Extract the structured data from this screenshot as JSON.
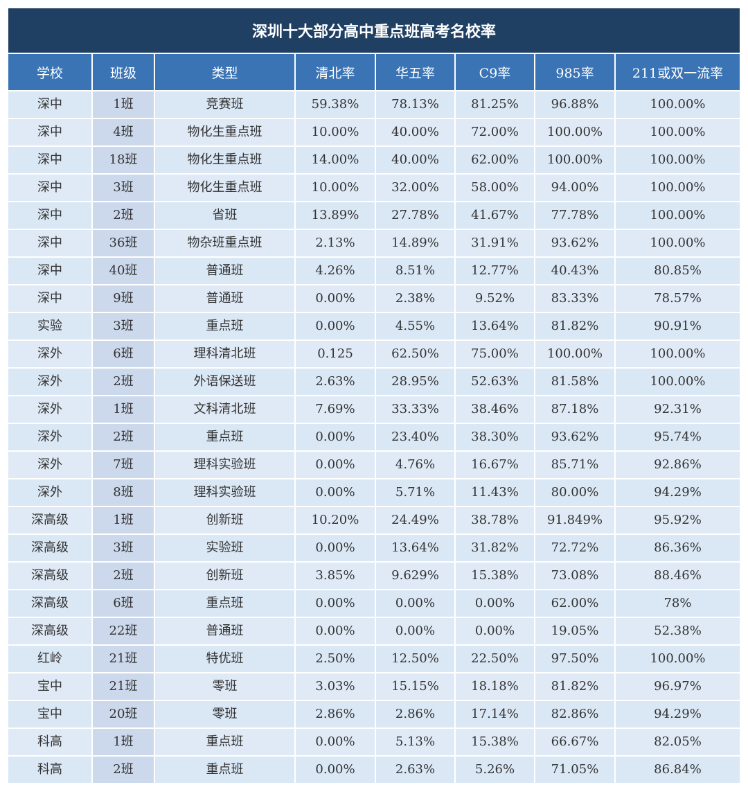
{
  "table": {
    "title": "深圳十大部分高中重点班高考名校率",
    "headers": [
      "学校",
      "班级",
      "类型",
      "清北率",
      "华五率",
      "C9率",
      "985率",
      "211或双一流率"
    ],
    "rows": [
      [
        "深中",
        "1班",
        "竞赛班",
        "59.38%",
        "78.13%",
        "81.25%",
        "96.88%",
        "100.00%"
      ],
      [
        "深中",
        "4班",
        "物化生重点班",
        "10.00%",
        "40.00%",
        "72.00%",
        "100.00%",
        "100.00%"
      ],
      [
        "深中",
        "18班",
        "物化生重点班",
        "14.00%",
        "40.00%",
        "62.00%",
        "100.00%",
        "100.00%"
      ],
      [
        "深中",
        "3班",
        "物化生重点班",
        "10.00%",
        "32.00%",
        "58.00%",
        "94.00%",
        "100.00%"
      ],
      [
        "深中",
        "2班",
        "省班",
        "13.89%",
        "27.78%",
        "41.67%",
        "77.78%",
        "100.00%"
      ],
      [
        "深中",
        "36班",
        "物杂班重点班",
        "2.13%",
        "14.89%",
        "31.91%",
        "93.62%",
        "100.00%"
      ],
      [
        "深中",
        "40班",
        "普通班",
        "4.26%",
        "8.51%",
        "12.77%",
        "40.43%",
        "80.85%"
      ],
      [
        "深中",
        "9班",
        "普通班",
        "0.00%",
        "2.38%",
        "9.52%",
        "83.33%",
        "78.57%"
      ],
      [
        "实验",
        "3班",
        "重点班",
        "0.00%",
        "4.55%",
        "13.64%",
        "81.82%",
        "90.91%"
      ],
      [
        "深外",
        "6班",
        "理科清北班",
        "0.125",
        "62.50%",
        "75.00%",
        "100.00%",
        "100.00%"
      ],
      [
        "深外",
        "2班",
        "外语保送班",
        "2.63%",
        "28.95%",
        "52.63%",
        "81.58%",
        "100.00%"
      ],
      [
        "深外",
        "1班",
        "文科清北班",
        "7.69%",
        "33.33%",
        "38.46%",
        "87.18%",
        "92.31%"
      ],
      [
        "深外",
        "2班",
        "重点班",
        "0.00%",
        "23.40%",
        "38.30%",
        "93.62%",
        "95.74%"
      ],
      [
        "深外",
        "7班",
        "理科实验班",
        "0.00%",
        "4.76%",
        "16.67%",
        "85.71%",
        "92.86%"
      ],
      [
        "深外",
        "8班",
        "理科实验班",
        "0.00%",
        "5.71%",
        "11.43%",
        "80.00%",
        "94.29%"
      ],
      [
        "深高级",
        "1班",
        "创新班",
        "10.20%",
        "24.49%",
        "38.78%",
        "91.849%",
        "95.92%"
      ],
      [
        "深高级",
        "3班",
        "实验班",
        "0.00%",
        "13.64%",
        "31.82%",
        "72.72%",
        "86.36%"
      ],
      [
        "深高级",
        "2班",
        "创新班",
        "3.85%",
        "9.629%",
        "15.38%",
        "73.08%",
        "88.46%"
      ],
      [
        "深高级",
        "6班",
        "重点班",
        "0.00%",
        "0.00%",
        "0.00%",
        "62.00%",
        "78%"
      ],
      [
        "深高级",
        "22班",
        "普通班",
        "0.00%",
        "0.00%",
        "0.00%",
        "19.05%",
        "52.38%"
      ],
      [
        "红岭",
        "21班",
        "特优班",
        "2.50%",
        "12.50%",
        "22.50%",
        "97.50%",
        "100.00%"
      ],
      [
        "宝中",
        "21班",
        "零班",
        "3.03%",
        "15.15%",
        "18.18%",
        "81.82%",
        "96.97%"
      ],
      [
        "宝中",
        "20班",
        "零班",
        "2.86%",
        "2.86%",
        "17.14%",
        "82.86%",
        "94.29%"
      ],
      [
        "科高",
        "1班",
        "重点班",
        "0.00%",
        "5.13%",
        "15.38%",
        "66.67%",
        "82.05%"
      ],
      [
        "科高",
        "2班",
        "重点班",
        "0.00%",
        "2.63%",
        "5.26%",
        "71.05%",
        "86.84%"
      ]
    ]
  }
}
